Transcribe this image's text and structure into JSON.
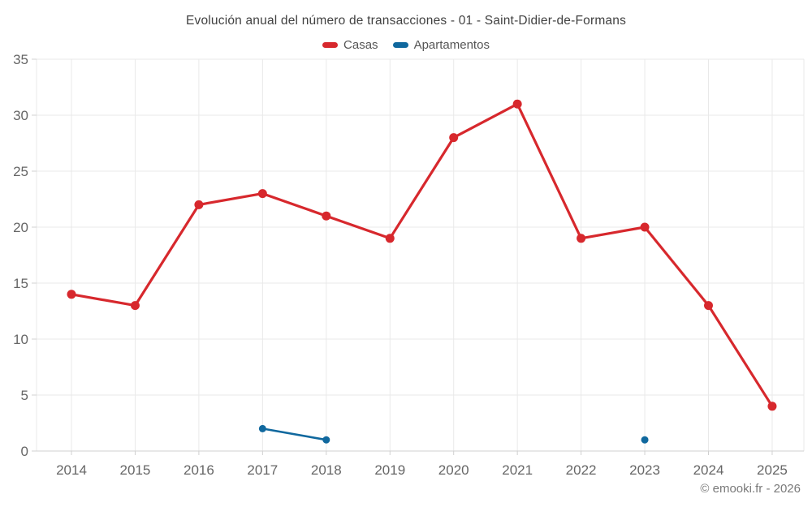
{
  "header": {
    "title": "Evolución anual del número de transacciones - 01 - Saint-Didier-de-Formans"
  },
  "footer": {
    "copyright": "© emooki.fr - 2026"
  },
  "colors": {
    "casas": "#d7282d",
    "apartamentos": "#10689e",
    "grid": "#e9e9e9",
    "axis": "#d0d0d0",
    "tick_label": "#666666"
  },
  "chart_data": {
    "type": "line",
    "title": "Evolución anual del número de transacciones - 01 - Saint-Didier-de-Formans",
    "categories": [
      "2014",
      "2015",
      "2016",
      "2017",
      "2018",
      "2019",
      "2020",
      "2021",
      "2022",
      "2023",
      "2024",
      "2025"
    ],
    "series": [
      {
        "name": "Casas",
        "color": "#d7282d",
        "values": [
          14,
          13,
          22,
          23,
          21,
          19,
          28,
          31,
          19,
          20,
          13,
          4
        ]
      },
      {
        "name": "Apartamentos",
        "color": "#10689e",
        "values": [
          null,
          null,
          null,
          2,
          1,
          null,
          null,
          null,
          null,
          1,
          null,
          null
        ]
      }
    ],
    "xlabel": "",
    "ylabel": "",
    "ylim": [
      0,
      35
    ],
    "y_ticks": [
      0,
      5,
      10,
      15,
      20,
      25,
      30,
      35
    ],
    "grid": true,
    "legend_position": "top"
  }
}
